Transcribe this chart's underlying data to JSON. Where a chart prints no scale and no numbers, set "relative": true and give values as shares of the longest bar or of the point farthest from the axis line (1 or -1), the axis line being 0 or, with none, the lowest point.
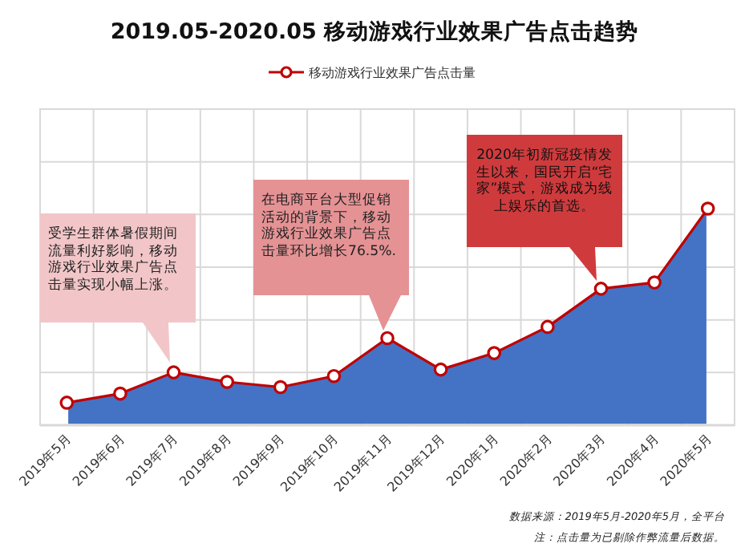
{
  "chart_data": {
    "type": "area",
    "title": "2019.05-2020.05  移动游戏行业效果广告点击趋势",
    "relative": true,
    "grid": true,
    "legend": "top",
    "marker": "circle",
    "line_style": "solid",
    "categories": [
      "2019年5月",
      "2019年6月",
      "2019年7月",
      "2019年8月",
      "2019年9月",
      "2019年10月",
      "2019年11月",
      "2019年12月",
      "2020年1月",
      "2020年2月",
      "2020年3月",
      "2020年4月",
      "2020年5月"
    ],
    "series": [
      {
        "name": "移动游戏行业效果广告点击量",
        "color": "#c00000",
        "values": [
          0.104,
          0.146,
          0.244,
          0.2,
          0.176,
          0.227,
          0.402,
          0.257,
          0.333,
          0.454,
          0.63,
          0.659,
          1
        ]
      }
    ],
    "annotations": [
      "受学生群体暑假期间流量利好影响，移动游戏行业效果广告点击量实现小幅上涨。",
      "在电商平台大型促销活动的背景下，移动游戏行业效果广告点击量环比增长76.5%.",
      "2020年初新冠疫情发生以来，国民开启“宅家”模式，游戏成为线上娱乐的首选。",
      "数据来源：2019年5月-2020年5月，全平台",
      "注：点击量为已剔除作弊流量后数据。"
    ]
  }
}
